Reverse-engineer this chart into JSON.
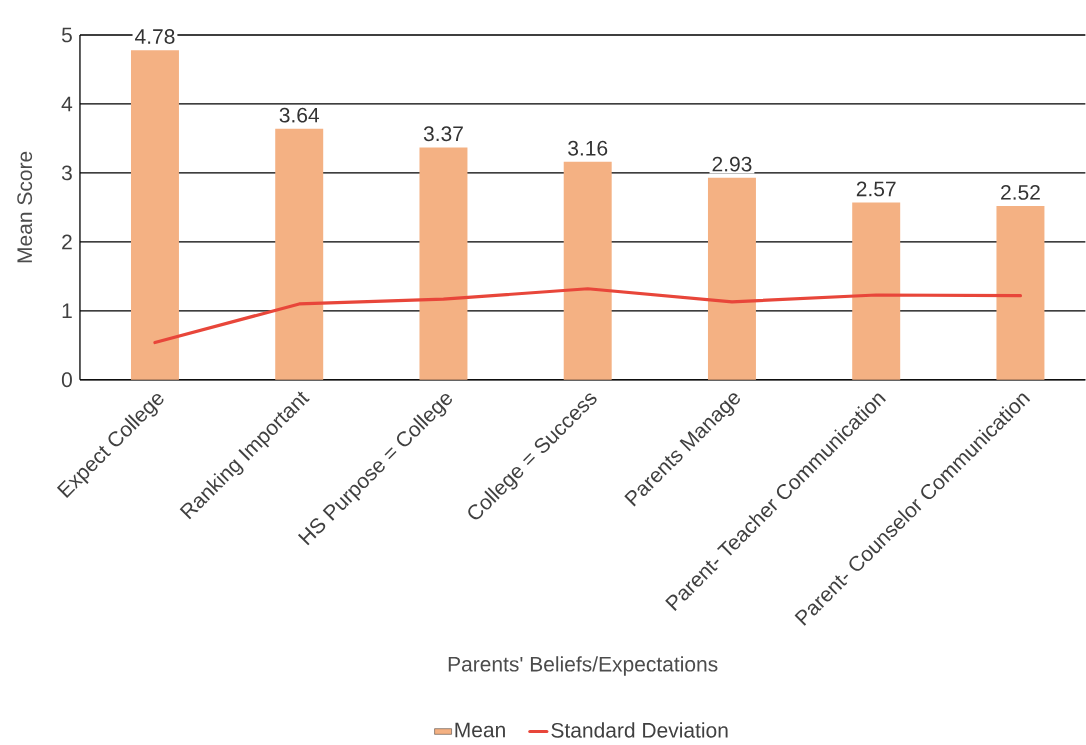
{
  "chart_data": {
    "type": "bar",
    "xlabel": "Parents' Beliefs/Expectations",
    "ylabel": "Mean Score",
    "categories": [
      "Expect College",
      "Ranking Important",
      "HS Purpose = College",
      "College = Success",
      "Parents Manage",
      "Parent- Teacher Communication",
      "Parent- Counselor Communication"
    ],
    "series": [
      {
        "name": "Mean",
        "color": "#f4b183",
        "values": [
          4.78,
          3.64,
          3.37,
          3.16,
          2.93,
          2.57,
          2.52
        ],
        "data_labels": true
      },
      {
        "name": "Standard Deviation",
        "type": "line",
        "color": "#e8463a",
        "values": [
          0.54,
          1.1,
          1.17,
          1.32,
          1.13,
          1.23,
          1.22
        ]
      }
    ],
    "ylim": [
      0,
      5
    ],
    "yticks": [
      0,
      1,
      2,
      3,
      4,
      5
    ],
    "grid": "y",
    "legend": "bottom"
  }
}
